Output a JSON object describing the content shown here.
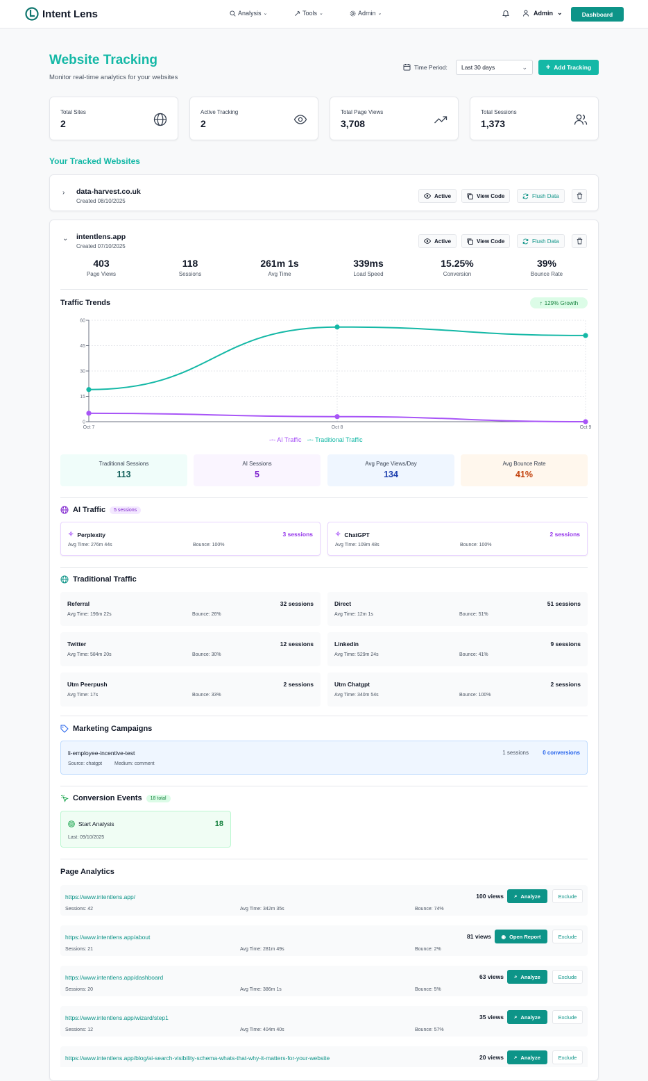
{
  "nav": {
    "brand": "Intent Lens",
    "analysis": "Analysis",
    "tools": "Tools",
    "admin_menu": "Admin",
    "user": "Admin",
    "dashboard": "Dashboard"
  },
  "header": {
    "title": "Website Tracking",
    "subtitle": "Monitor real-time analytics for your websites",
    "period_label": "Time Period:",
    "period_value": "Last 30 days",
    "add_button": "Add Tracking"
  },
  "stats": [
    {
      "label": "Total Sites",
      "value": "2",
      "icon": "globe-icon"
    },
    {
      "label": "Active Tracking",
      "value": "2",
      "icon": "eye-icon"
    },
    {
      "label": "Total Page Views",
      "value": "3,708",
      "icon": "trending-up-icon"
    },
    {
      "label": "Total Sessions",
      "value": "1,373",
      "icon": "users-icon"
    }
  ],
  "tracked_title": "Your Tracked Websites",
  "actions": {
    "active": "Active",
    "view_code": "View Code",
    "flush": "Flush Data"
  },
  "sites": [
    {
      "name": "data-harvest.co.uk",
      "created": "Created 08/10/2025"
    },
    {
      "name": "intentlens.app",
      "created": "Created 07/10/2025"
    }
  ],
  "metrics": [
    {
      "value": "403",
      "label": "Page Views"
    },
    {
      "value": "118",
      "label": "Sessions"
    },
    {
      "value": "261m 1s",
      "label": "Avg Time"
    },
    {
      "value": "339ms",
      "label": "Load Speed"
    },
    {
      "value": "15.25%",
      "label": "Conversion"
    },
    {
      "value": "39%",
      "label": "Bounce Rate"
    }
  ],
  "trends": {
    "title": "Traffic Trends",
    "growth": "129% Growth"
  },
  "chart_data": {
    "type": "line",
    "title": "Traffic Trends",
    "categories": [
      "Oct 7",
      "Oct 8",
      "Oct 9"
    ],
    "ylim": [
      0,
      60
    ],
    "yticks": [
      "0",
      "15",
      "30",
      "45",
      "60"
    ],
    "series": [
      {
        "name": "AI Traffic",
        "values": [
          5,
          3,
          0
        ],
        "color": "#a855f7"
      },
      {
        "name": "Traditional Traffic",
        "values": [
          19,
          56,
          51
        ],
        "color": "#14b8a6"
      }
    ],
    "legend": "bottom"
  },
  "summary": [
    {
      "label": "Traditional Sessions",
      "value": "113",
      "bg": "#f0fdfa",
      "color": "#115e59"
    },
    {
      "label": "AI Sessions",
      "value": "5",
      "bg": "#faf5ff",
      "color": "#7e22ce"
    },
    {
      "label": "Avg Page Views/Day",
      "value": "134",
      "bg": "#eff6ff",
      "color": "#1e40af"
    },
    {
      "label": "Avg Bounce Rate",
      "value": "41%",
      "bg": "#fff7ed",
      "color": "#c2410c"
    }
  ],
  "ai_traffic": {
    "title": "AI Traffic",
    "badge": "5 sessions",
    "items": [
      {
        "name": "Perplexity",
        "sessions": "3 sessions",
        "avg": "Avg Time: 276m 44s",
        "bounce": "Bounce: 100%"
      },
      {
        "name": "ChatGPT",
        "sessions": "2 sessions",
        "avg": "Avg Time: 109m 48s",
        "bounce": "Bounce: 100%"
      }
    ]
  },
  "traditional": {
    "title": "Traditional Traffic",
    "items": [
      {
        "name": "Referral",
        "sessions": "32 sessions",
        "avg": "Avg Time: 196m 22s",
        "bounce": "Bounce: 26%"
      },
      {
        "name": "Direct",
        "sessions": "51 sessions",
        "avg": "Avg Time: 12m 1s",
        "bounce": "Bounce: 51%"
      },
      {
        "name": "Twitter",
        "sessions": "12 sessions",
        "avg": "Avg Time: 584m 20s",
        "bounce": "Bounce: 30%"
      },
      {
        "name": "Linkedin",
        "sessions": "9 sessions",
        "avg": "Avg Time: 529m 24s",
        "bounce": "Bounce: 41%"
      },
      {
        "name": "Utm Peerpush",
        "sessions": "2 sessions",
        "avg": "Avg Time: 17s",
        "bounce": "Bounce: 33%"
      },
      {
        "name": "Utm Chatgpt",
        "sessions": "2 sessions",
        "avg": "Avg Time: 340m 54s",
        "bounce": "Bounce: 100%"
      }
    ]
  },
  "campaigns": {
    "title": "Marketing Campaigns",
    "name": "li-employee-incentive-test",
    "source": "Source: chatgpt",
    "medium": "Medium: comment",
    "sessions": "1 sessions",
    "conversions": "0 conversions"
  },
  "conversions": {
    "title": "Conversion Events",
    "badge": "18 total",
    "event": "Start Analysis",
    "count": "18",
    "last": "Last: 09/10/2025"
  },
  "page_analytics": {
    "title": "Page Analytics",
    "exclude": "Exclude",
    "rows": [
      {
        "url": "https://www.intentlens.app/",
        "views": "100 views",
        "button": "Analyze",
        "sessions": "Sessions: 42",
        "avg": "Avg Time: 342m 35s",
        "bounce": "Bounce: 74%"
      },
      {
        "url": "https://www.intentlens.app/about",
        "views": "81 views",
        "button": "Open Report",
        "sessions": "Sessions: 21",
        "avg": "Avg Time: 281m 49s",
        "bounce": "Bounce: 2%"
      },
      {
        "url": "https://www.intentlens.app/dashboard",
        "views": "63 views",
        "button": "Analyze",
        "sessions": "Sessions: 20",
        "avg": "Avg Time: 386m 1s",
        "bounce": "Bounce: 5%"
      },
      {
        "url": "https://www.intentlens.app/wizard/step1",
        "views": "35 views",
        "button": "Analyze",
        "sessions": "Sessions: 12",
        "avg": "Avg Time: 404m 40s",
        "bounce": "Bounce: 57%"
      },
      {
        "url": "https://www.intentlens.app/blog/ai-search-visibility-schema-whats-that-why-it-matters-for-your-website",
        "views": "20 views",
        "button": "Analyze"
      }
    ]
  }
}
